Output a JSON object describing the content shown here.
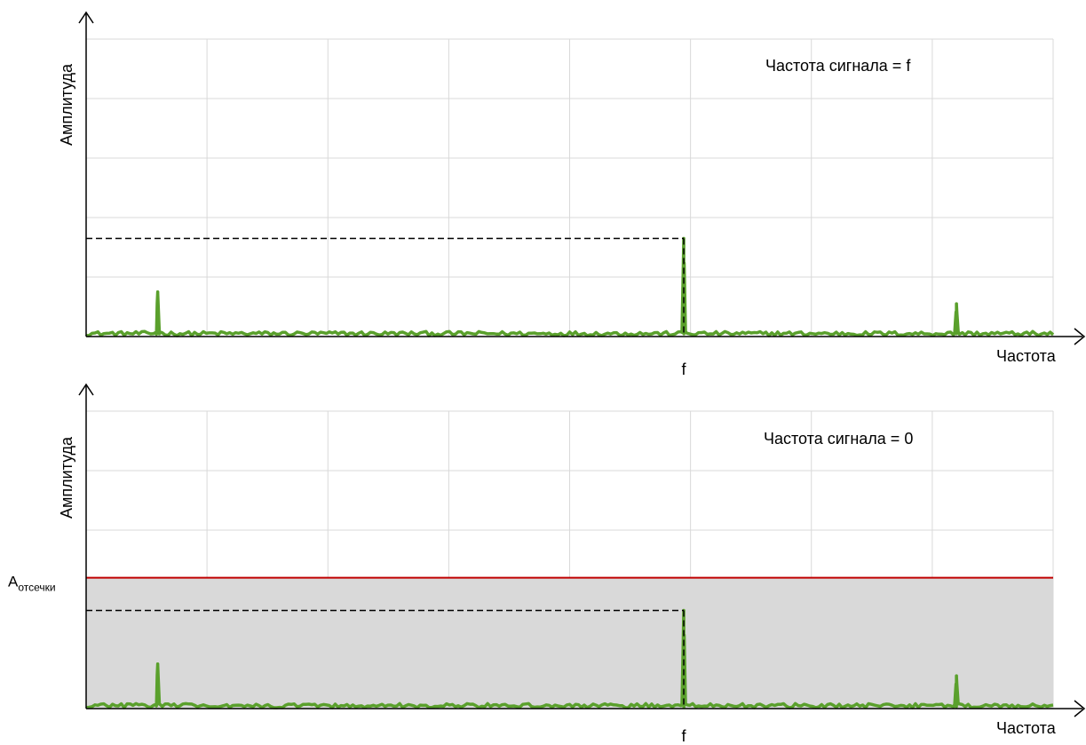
{
  "chart_data": [
    {
      "type": "line",
      "annotation": "Частота сигнала = f",
      "xlabel": "Частота",
      "ylabel": "Амплитуда",
      "x_tick_labels": [
        {
          "x": 0.618,
          "label": "f"
        }
      ],
      "xlim": [
        0,
        1
      ],
      "ylim": [
        0,
        5
      ],
      "grid": true,
      "line_color": "#5aa02c",
      "reference_line_color": "#000000",
      "noise_level": 0.05,
      "peaks": [
        {
          "x": 0.074,
          "amplitude": 0.75
        },
        {
          "x": 0.618,
          "amplitude": 1.65,
          "marked": true
        },
        {
          "x": 0.9,
          "amplitude": 0.55
        }
      ]
    },
    {
      "type": "line",
      "annotation": "Частота сигнала = 0",
      "xlabel": "Частота",
      "ylabel": "Амплитуда",
      "x_tick_labels": [
        {
          "x": 0.618,
          "label": "f"
        }
      ],
      "xlim": [
        0,
        1
      ],
      "ylim": [
        0,
        5
      ],
      "grid": true,
      "line_color": "#5aa02c",
      "reference_line_color": "#000000",
      "noise_level": 0.05,
      "peaks": [
        {
          "x": 0.074,
          "amplitude": 0.75
        },
        {
          "x": 0.618,
          "amplitude": 1.65,
          "marked": true
        },
        {
          "x": 0.9,
          "amplitude": 0.55
        }
      ],
      "threshold": {
        "value": 2.2,
        "label_main": "A",
        "label_sub": "отсечки",
        "line_color": "#c00000",
        "fill_color": "#d9d9d9"
      }
    }
  ]
}
